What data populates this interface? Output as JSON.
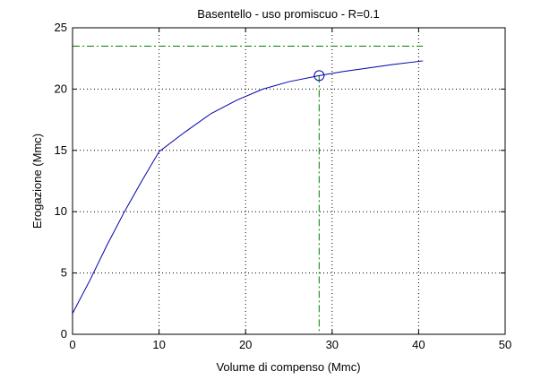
{
  "chart_data": {
    "type": "line",
    "title": "Basentello  -  uso promiscuo  -   R=0.1",
    "xlabel": "Volume di compenso (Mmc)",
    "ylabel": "Erogazione (Mmc)",
    "xlim": [
      0,
      50
    ],
    "ylim": [
      0,
      25
    ],
    "xticks": [
      0,
      10,
      20,
      30,
      40,
      50
    ],
    "yticks": [
      0,
      5,
      10,
      15,
      20,
      25
    ],
    "xtick_labels": [
      "0",
      "10",
      "20",
      "30",
      "40",
      "50"
    ],
    "ytick_labels": [
      "0",
      "5",
      "10",
      "15",
      "20",
      "25"
    ],
    "grid": true,
    "series": [
      {
        "color": "#0000aa",
        "x": [
          0,
          2,
          4,
          6,
          8,
          10,
          13,
          16,
          19,
          22,
          25,
          28.5,
          31,
          34,
          37,
          40.5
        ],
        "y": [
          1.7,
          4.4,
          7.3,
          10.0,
          12.5,
          14.9,
          16.5,
          18.0,
          19.1,
          20.0,
          20.6,
          21.1,
          21.4,
          21.7,
          22.0,
          22.3
        ]
      }
    ],
    "marker_point": {
      "x": 28.5,
      "y": 21.1,
      "color": "#0000aa"
    },
    "reference_lines": {
      "horizontal_y": 23.5,
      "horizontal_xmax": 40.5,
      "vertical_x": 28.5,
      "color": "#008000"
    }
  }
}
